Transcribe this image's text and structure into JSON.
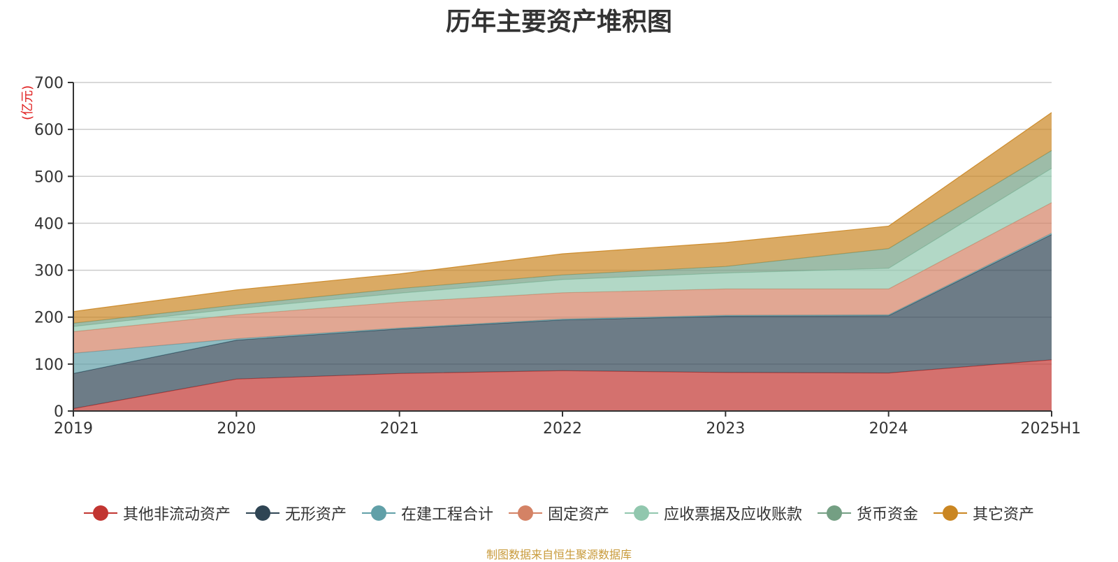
{
  "chart_data": {
    "type": "area",
    "title": "历年主要资产堆积图",
    "ylabel": "(亿元)",
    "categories": [
      "2019",
      "2020",
      "2021",
      "2022",
      "2023",
      "2024",
      "2025H1"
    ],
    "ylim": [
      0,
      700
    ],
    "yticks": [
      0,
      100,
      200,
      300,
      400,
      500,
      600,
      700
    ],
    "stacked": true,
    "grid": true,
    "legend_position": "bottom",
    "series": [
      {
        "name": "其他非流动资产",
        "color": "#c23531",
        "values": [
          5,
          68,
          80,
          86,
          82,
          81,
          109
        ]
      },
      {
        "name": "无形资产",
        "color": "#2f4554",
        "values": [
          75,
          83,
          95,
          108,
          120,
          122,
          267
        ]
      },
      {
        "name": "在建工程合计",
        "color": "#61a0a8",
        "values": [
          43,
          3,
          2,
          2,
          2,
          2,
          3
        ]
      },
      {
        "name": "固定资产",
        "color": "#d48265",
        "values": [
          46,
          51,
          55,
          56,
          56,
          55,
          65
        ]
      },
      {
        "name": "应收票据及应收账款",
        "color": "#91c7ae",
        "values": [
          11,
          13,
          19,
          28,
          34,
          44,
          73
        ]
      },
      {
        "name": "货币资金",
        "color": "#749f83",
        "values": [
          7,
          8,
          10,
          10,
          14,
          42,
          38
        ]
      },
      {
        "name": "其它资产",
        "color": "#ca8622",
        "values": [
          25,
          32,
          31,
          45,
          51,
          48,
          81
        ]
      }
    ]
  },
  "source_note": "制图数据来自恒生聚源数据库"
}
